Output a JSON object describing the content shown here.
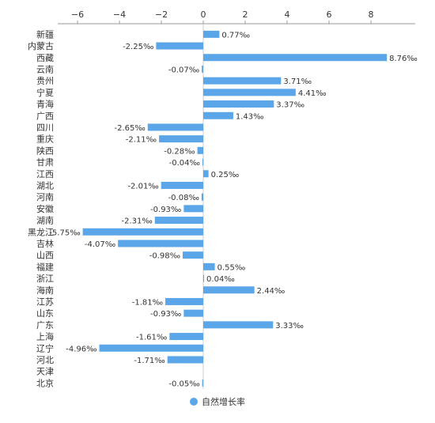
{
  "chart_data": {
    "type": "bar",
    "orientation": "horizontal",
    "categories": [
      "新疆",
      "内蒙古",
      "西藏",
      "云南",
      "贵州",
      "宁夏",
      "青海",
      "广西",
      "四川",
      "重庆",
      "陕西",
      "甘肃",
      "江西",
      "湖北",
      "河南",
      "安徽",
      "湖南",
      "黑龙江",
      "吉林",
      "山西",
      "福建",
      "浙江",
      "海南",
      "江苏",
      "山东",
      "广东",
      "上海",
      "辽宁",
      "河北",
      "天津",
      "北京"
    ],
    "series": [
      {
        "name": "自然增长率",
        "color": "#5aa6e8",
        "values": [
          0.77,
          -2.25,
          8.76,
          -0.07,
          3.71,
          4.41,
          3.37,
          1.43,
          -2.65,
          -2.11,
          -0.28,
          -0.04,
          0.25,
          -2.01,
          -0.08,
          -0.93,
          -2.31,
          -5.75,
          -4.07,
          -0.98,
          0.55,
          0.04,
          2.44,
          -1.81,
          -0.93,
          3.33,
          -1.61,
          -4.96,
          -1.71,
          null,
          -0.05
        ],
        "labels": [
          "0.77‰",
          "-2.25‰",
          "8.76‰",
          "-0.07‰",
          "3.71‰",
          "4.41‰",
          "3.37‰",
          "1.43‰",
          "-2.65‰",
          "-2.11‰",
          "-0.28‰",
          "-0.04‰",
          "0.25‰",
          "-2.01‰",
          "-0.08‰",
          "-0.93‰",
          "-2.31‰",
          "-5.75‰",
          "-4.07‰",
          "-0.98‰",
          "0.55‰",
          "0.04‰",
          "2.44‰",
          "-1.81‰",
          "-0.93‰",
          "3.33‰",
          "-1.61‰",
          "-4.96‰",
          "-1.71‰",
          "",
          "-0.05‰"
        ]
      }
    ],
    "x_ticks": [
      "-6",
      "-4",
      "-2",
      "0",
      "2",
      "4",
      "6",
      "8"
    ],
    "xlim": [
      -6,
      9
    ],
    "title": "",
    "xlabel": "",
    "ylabel": "",
    "grid": false,
    "legend": {
      "position": "bottom-center",
      "label": "自然增长率"
    }
  }
}
